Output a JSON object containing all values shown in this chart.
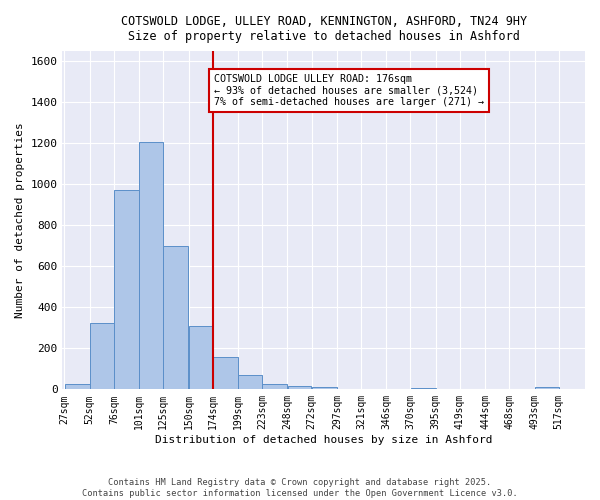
{
  "title_line1": "COTSWOLD LODGE, ULLEY ROAD, KENNINGTON, ASHFORD, TN24 9HY",
  "title_line2": "Size of property relative to detached houses in Ashford",
  "xlabel": "Distribution of detached houses by size in Ashford",
  "ylabel": "Number of detached properties",
  "bins": [
    27,
    52,
    76,
    101,
    125,
    150,
    174,
    199,
    223,
    248,
    272,
    297,
    321,
    346,
    370,
    395,
    419,
    444,
    468,
    493,
    517
  ],
  "counts": [
    27,
    322,
    970,
    1205,
    700,
    308,
    160,
    72,
    28,
    18,
    12,
    0,
    0,
    0,
    7,
    0,
    0,
    0,
    0,
    13
  ],
  "bar_color": "#aec6e8",
  "bar_edge_color": "#5b8fc9",
  "bg_color": "#e8eaf6",
  "grid_color": "#ffffff",
  "vline_x": 174,
  "vline_color": "#cc0000",
  "annotation_text": "COTSWOLD LODGE ULLEY ROAD: 176sqm\n← 93% of detached houses are smaller (3,524)\n7% of semi-detached houses are larger (271) →",
  "annotation_box_color": "#cc0000",
  "ylim": [
    0,
    1650
  ],
  "yticks": [
    0,
    200,
    400,
    600,
    800,
    1000,
    1200,
    1400,
    1600
  ],
  "footer_line1": "Contains HM Land Registry data © Crown copyright and database right 2025.",
  "footer_line2": "Contains public sector information licensed under the Open Government Licence v3.0."
}
